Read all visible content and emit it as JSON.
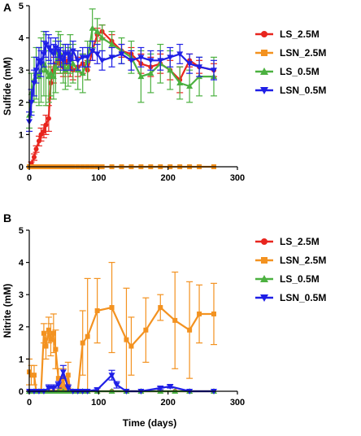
{
  "chart_data": [
    {
      "panel": "A",
      "type": "line",
      "title": "",
      "xlabel": "",
      "ylabel": "Sulfide (mM)",
      "xlim": [
        0,
        300
      ],
      "ylim": [
        0,
        5
      ],
      "xticks": [
        0,
        100,
        200,
        300
      ],
      "yticks": [
        0,
        1,
        2,
        3,
        4,
        5
      ],
      "legend_position": "right",
      "series": [
        {
          "name": "LS_2.5M",
          "color": "#e8251e",
          "marker": "circle",
          "x": [
            0,
            3,
            7,
            10,
            14,
            17,
            21,
            24,
            28,
            31,
            35,
            38,
            42,
            45,
            49,
            52,
            56,
            59,
            63,
            70,
            77,
            84,
            91,
            98,
            105,
            119,
            133,
            147,
            161,
            175,
            189,
            203,
            217,
            231,
            245,
            266
          ],
          "y": [
            0,
            0.1,
            0.3,
            0.55,
            0.8,
            1.0,
            1.1,
            1.3,
            1.5,
            2.6,
            3.0,
            3.2,
            3.3,
            3.2,
            3.1,
            3.2,
            3.3,
            3.1,
            3.0,
            3.1,
            3.2,
            3.0,
            3.6,
            4.1,
            4.2,
            3.9,
            3.6,
            3.5,
            3.2,
            3.1,
            3.2,
            3.0,
            2.7,
            3.3,
            3.1,
            3.0
          ],
          "err": [
            0,
            0.05,
            0.1,
            0.1,
            0.15,
            0.2,
            0.2,
            0.3,
            0.4,
            0.5,
            0.4,
            0.3,
            0.3,
            0.3,
            0.3,
            0.3,
            0.3,
            0.3,
            0.3,
            0.3,
            0.3,
            0.3,
            0.3,
            0.2,
            0.2,
            0.2,
            0.2,
            0.2,
            0.3,
            0.3,
            0.3,
            0.3,
            0.4,
            0.2,
            0.2,
            0.2
          ]
        },
        {
          "name": "LSN_2.5M",
          "color": "#f39220",
          "marker": "square",
          "x": [
            0,
            3,
            7,
            10,
            14,
            17,
            21,
            24,
            28,
            31,
            35,
            38,
            42,
            45,
            49,
            52,
            56,
            59,
            63,
            70,
            77,
            84,
            91,
            98,
            105,
            119,
            133,
            147,
            161,
            175,
            189,
            203,
            217,
            231,
            245,
            266
          ],
          "y": [
            0,
            0,
            0,
            0,
            0,
            0,
            0,
            0,
            0,
            0,
            0,
            0,
            0,
            0,
            0,
            0,
            0,
            0,
            0,
            0,
            0,
            0,
            0,
            0,
            0,
            0,
            0,
            0,
            0,
            0,
            0,
            0,
            0,
            0,
            0,
            0
          ],
          "err": [
            0,
            0,
            0,
            0,
            0,
            0,
            0,
            0,
            0,
            0,
            0,
            0,
            0,
            0,
            0,
            0,
            0,
            0,
            0,
            0,
            0,
            0,
            0,
            0,
            0,
            0,
            0,
            0,
            0,
            0,
            0,
            0,
            0,
            0,
            0,
            0
          ]
        },
        {
          "name": "LS_0.5M",
          "color": "#4cb140",
          "marker": "triangle-up",
          "x": [
            0,
            3,
            7,
            10,
            14,
            17,
            21,
            24,
            28,
            31,
            35,
            38,
            42,
            45,
            49,
            52,
            56,
            59,
            63,
            70,
            77,
            84,
            91,
            98,
            105,
            119,
            133,
            147,
            161,
            175,
            189,
            203,
            217,
            231,
            245,
            266
          ],
          "y": [
            1.6,
            2.3,
            2.7,
            2.9,
            2.8,
            3.0,
            3.2,
            3.0,
            2.8,
            2.9,
            2.8,
            3.1,
            3.6,
            3.5,
            3.2,
            3.0,
            3.1,
            3.5,
            3.2,
            3.0,
            2.9,
            3.3,
            4.3,
            4.2,
            4.0,
            3.8,
            3.6,
            3.4,
            2.8,
            2.9,
            3.2,
            3.0,
            2.6,
            2.5,
            2.8,
            2.8
          ],
          "err": [
            0.4,
            0.6,
            0.7,
            0.8,
            0.9,
            1.0,
            1.0,
            1.1,
            0.8,
            0.7,
            0.7,
            0.8,
            0.6,
            0.6,
            0.6,
            0.6,
            0.6,
            0.6,
            0.6,
            0.6,
            0.6,
            0.6,
            0.6,
            0.4,
            0.4,
            0.4,
            0.4,
            0.5,
            0.8,
            0.6,
            0.6,
            0.6,
            0.5,
            0.5,
            0.6,
            0.6
          ]
        },
        {
          "name": "LSN_0.5M",
          "color": "#1f1fe6",
          "marker": "triangle-down",
          "x": [
            0,
            3,
            7,
            10,
            14,
            17,
            21,
            24,
            28,
            31,
            35,
            38,
            42,
            45,
            49,
            52,
            56,
            59,
            63,
            70,
            77,
            84,
            91,
            98,
            105,
            119,
            133,
            147,
            161,
            175,
            189,
            203,
            217,
            231,
            245,
            266
          ],
          "y": [
            1.4,
            2.0,
            2.6,
            3.0,
            3.3,
            3.2,
            3.5,
            3.8,
            3.7,
            3.6,
            3.5,
            3.7,
            3.6,
            3.4,
            3.3,
            3.5,
            3.5,
            3.3,
            3.6,
            3.3,
            3.4,
            3.4,
            3.6,
            3.5,
            3.3,
            3.4,
            3.5,
            3.3,
            3.4,
            3.3,
            3.3,
            3.4,
            3.5,
            3.2,
            3.1,
            3.0
          ],
          "err": [
            0.3,
            0.4,
            0.4,
            0.4,
            0.4,
            0.4,
            0.4,
            0.4,
            0.4,
            0.4,
            0.3,
            0.3,
            0.3,
            0.3,
            0.3,
            0.3,
            0.3,
            0.3,
            0.3,
            0.3,
            0.3,
            0.3,
            0.3,
            0.3,
            0.3,
            0.3,
            0.3,
            0.3,
            0.3,
            0.3,
            0.3,
            0.3,
            0.3,
            0.3,
            0.3,
            0.3
          ]
        }
      ]
    },
    {
      "panel": "B",
      "type": "line",
      "title": "",
      "xlabel": "Time (days)",
      "ylabel": "Nitrite (mM)",
      "xlim": [
        0,
        300
      ],
      "ylim": [
        0,
        5
      ],
      "xticks": [
        0,
        100,
        200,
        300
      ],
      "yticks": [
        0,
        1,
        2,
        3,
        4,
        5
      ],
      "legend_position": "right",
      "series": [
        {
          "name": "LS_2.5M",
          "color": "#e8251e",
          "marker": "circle",
          "x": [
            0,
            7,
            14,
            21,
            28,
            35,
            42,
            49,
            56,
            63,
            70,
            77,
            84,
            98,
            119,
            140,
            161,
            189,
            210,
            231,
            266
          ],
          "y": [
            0,
            0,
            0,
            0,
            0,
            0,
            0,
            0,
            0,
            0,
            0,
            0,
            0,
            0,
            0,
            0,
            0,
            0,
            0,
            0,
            0
          ],
          "err": [
            0,
            0,
            0,
            0,
            0,
            0,
            0,
            0,
            0,
            0,
            0,
            0,
            0,
            0,
            0,
            0,
            0,
            0,
            0,
            0,
            0
          ]
        },
        {
          "name": "LSN_2.5M",
          "color": "#f39220",
          "marker": "square",
          "x": [
            0,
            3,
            7,
            10,
            17,
            21,
            24,
            28,
            31,
            35,
            38,
            42,
            45,
            49,
            52,
            56,
            59,
            63,
            70,
            77,
            84,
            98,
            119,
            140,
            147,
            168,
            189,
            210,
            231,
            245,
            266
          ],
          "y": [
            0.6,
            0.5,
            0.5,
            0,
            0,
            1.8,
            1.4,
            1.9,
            1.6,
            1.8,
            1.3,
            0.4,
            0.1,
            0.4,
            0,
            0.5,
            0,
            0,
            0,
            1.5,
            1.7,
            2.5,
            2.6,
            1.6,
            1.4,
            1.9,
            2.6,
            2.2,
            1.9,
            2.4,
            2.4
          ],
          "err": [
            0.4,
            0.3,
            0.3,
            0,
            0,
            0.3,
            0.4,
            0.4,
            0.5,
            0.6,
            0.6,
            0.3,
            0.1,
            0.3,
            0,
            0.4,
            0,
            0,
            0,
            1.0,
            1.8,
            1.0,
            1.4,
            1.6,
            0.9,
            1.0,
            0.4,
            1.5,
            1.5,
            0.9,
            0.95
          ]
        },
        {
          "name": "LS_0.5M",
          "color": "#4cb140",
          "marker": "triangle-up",
          "x": [
            0,
            7,
            14,
            21,
            28,
            35,
            42,
            49,
            56,
            63,
            70,
            77,
            84,
            98,
            119,
            140,
            161,
            189,
            210,
            231,
            266
          ],
          "y": [
            0,
            0,
            0,
            0,
            0,
            0,
            0,
            0,
            0,
            0,
            0,
            0,
            0,
            0,
            0,
            0,
            0,
            0,
            0,
            0,
            0
          ],
          "err": [
            0,
            0,
            0,
            0,
            0,
            0,
            0,
            0,
            0,
            0,
            0,
            0,
            0,
            0,
            0,
            0,
            0,
            0,
            0,
            0,
            0
          ]
        },
        {
          "name": "LSN_0.5M",
          "color": "#1f1fe6",
          "marker": "triangle-down",
          "x": [
            0,
            7,
            14,
            21,
            28,
            35,
            42,
            49,
            56,
            63,
            70,
            77,
            84,
            98,
            119,
            126,
            140,
            161,
            189,
            203,
            231,
            266
          ],
          "y": [
            0,
            0,
            0,
            0,
            0.1,
            0.1,
            0.2,
            0.6,
            0.1,
            0,
            0,
            0,
            0,
            0.05,
            0.5,
            0.2,
            0,
            0,
            0.1,
            0.15,
            0,
            0
          ],
          "err": [
            0,
            0,
            0,
            0,
            0.1,
            0.1,
            0.1,
            0.2,
            0.1,
            0,
            0,
            0,
            0,
            0.05,
            0.15,
            0.1,
            0,
            0,
            0.05,
            0.05,
            0,
            0
          ]
        }
      ]
    }
  ]
}
